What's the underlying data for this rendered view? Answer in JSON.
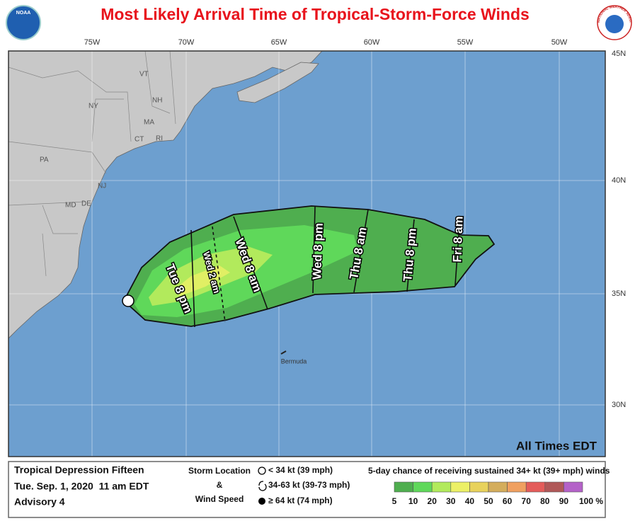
{
  "header": {
    "title": "Most Likely Arrival Time of Tropical-Storm-Force Winds",
    "left_logo": "NOAA",
    "right_logo": "NATIONAL WEATHER SERVICE"
  },
  "map": {
    "lon_labels": [
      "75W",
      "70W",
      "65W",
      "60W",
      "55W",
      "50W"
    ],
    "lat_labels": [
      "45N",
      "40N",
      "35N",
      "30N"
    ],
    "state_labels": [
      "VT",
      "NH",
      "NY",
      "MA",
      "CT",
      "RI",
      "PA",
      "NJ",
      "DE",
      "MD"
    ],
    "place_label": "Bermuda",
    "note": "All Times EDT"
  },
  "swath": {
    "time_labels": [
      "Tue 8 pm",
      "Wed 2 am",
      "Wed 8 am",
      "Wed 8 pm",
      "Thu 8 am",
      "Thu 8 pm",
      "Fri 8 am"
    ]
  },
  "legend": {
    "storm_name": "Tropical Depression Fifteen",
    "issued": "Tue. Sep. 1, 2020  11 am EDT",
    "advisory": "Advisory 4",
    "symbol_title": [
      "Storm Location",
      "&",
      "Wind Speed"
    ],
    "symbols": [
      "< 34 kt (39 mph)",
      "34-63 kt (39-73 mph)",
      "≥ 64 kt (74 mph)"
    ],
    "scale_title": "5-day chance of receiving sustained 34+ kt (39+ mph) winds",
    "scale_labels": [
      5,
      10,
      20,
      30,
      40,
      50,
      60,
      70,
      80,
      90,
      "100 %"
    ],
    "scale_colors": [
      "#4fae4f",
      "#5fd85a",
      "#b2ea5c",
      "#ecf066",
      "#e8d25c",
      "#d4ad5c",
      "#f0a060",
      "#e45c5a",
      "#b05858",
      "#b462c8"
    ]
  }
}
